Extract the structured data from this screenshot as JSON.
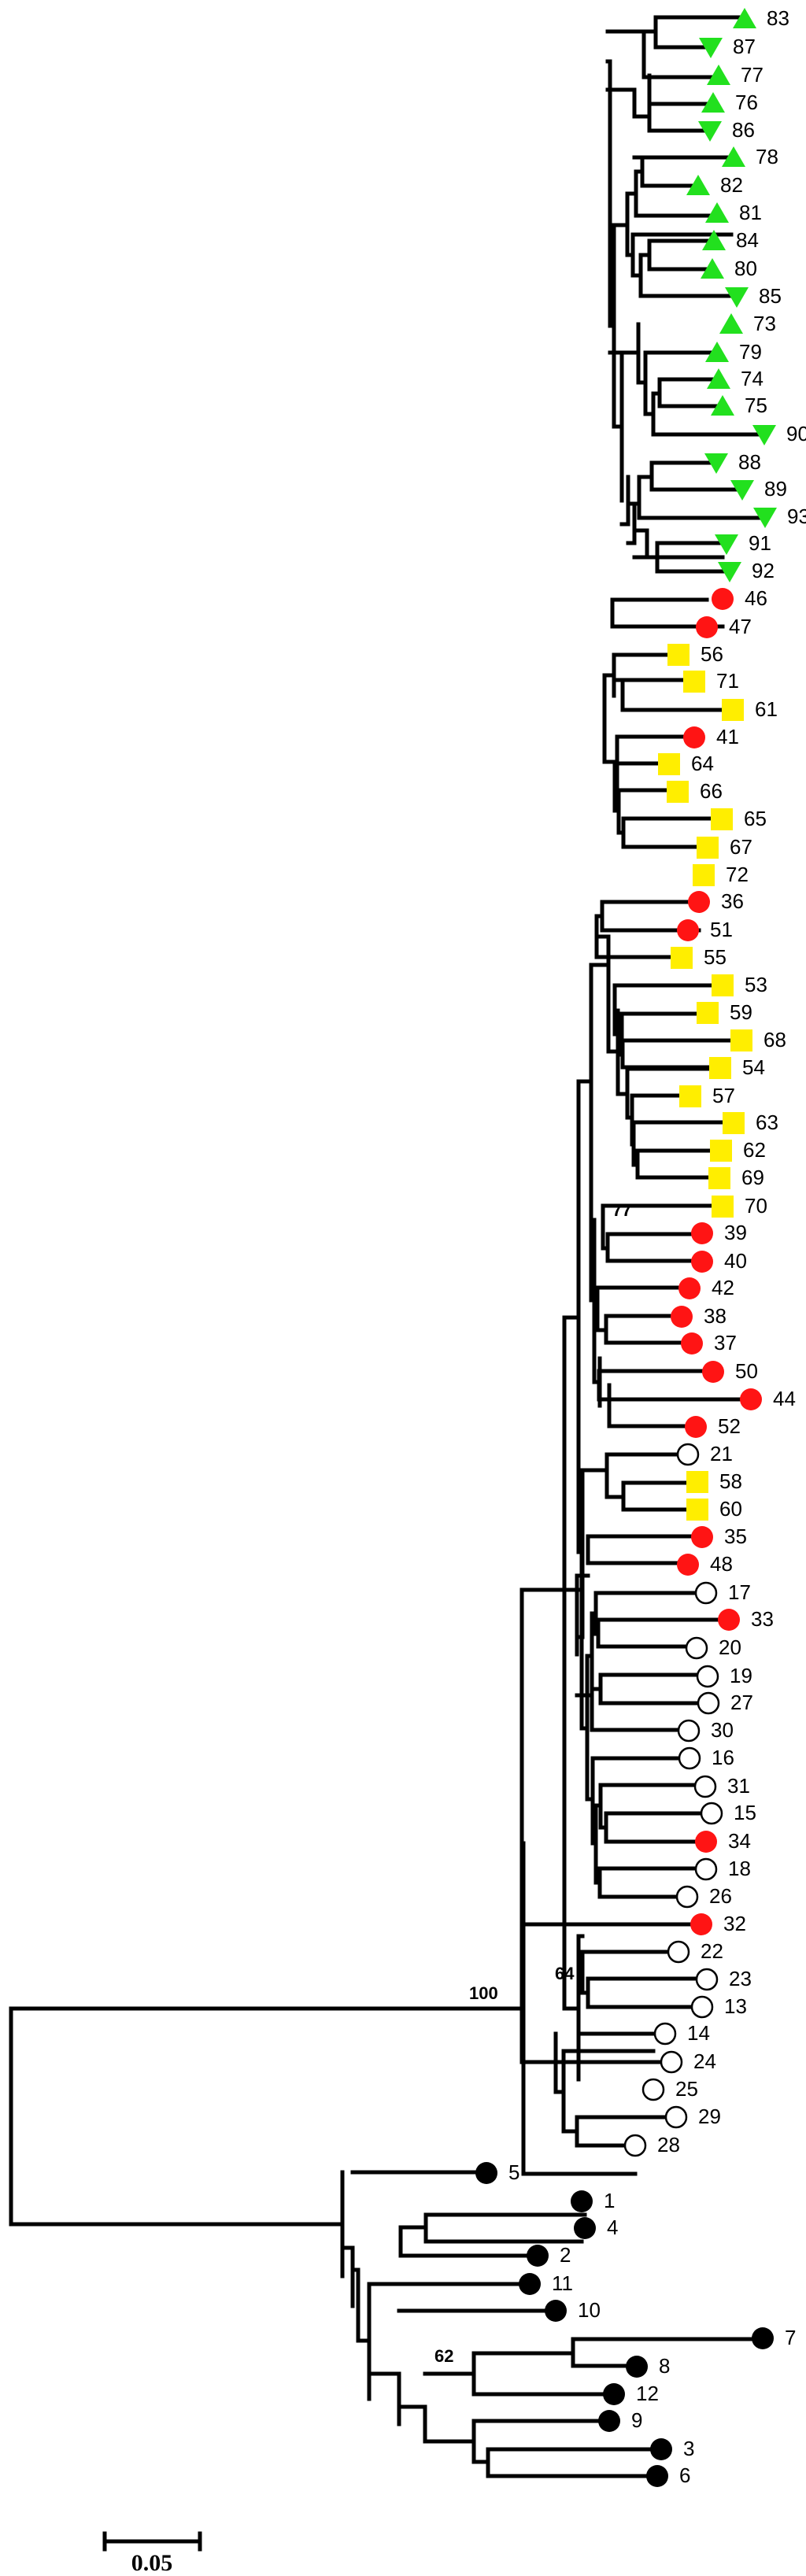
{
  "colors": {
    "triangle_up": "#22e01e",
    "triangle_down": "#22e01e",
    "square": "#ffee00",
    "filled_circle_red": "#ff1414",
    "open_circle": "#ffffff",
    "filled_circle_black": "#000000"
  },
  "tips": [
    {
      "label": "83",
      "marker": "triangle_up"
    },
    {
      "label": "87",
      "marker": "triangle_down"
    },
    {
      "label": "77",
      "marker": "triangle_up"
    },
    {
      "label": "76",
      "marker": "triangle_up"
    },
    {
      "label": "86",
      "marker": "triangle_down"
    },
    {
      "label": "78",
      "marker": "triangle_up"
    },
    {
      "label": "82",
      "marker": "triangle_up"
    },
    {
      "label": "81",
      "marker": "triangle_up"
    },
    {
      "label": "84",
      "marker": "triangle_up"
    },
    {
      "label": "80",
      "marker": "triangle_up"
    },
    {
      "label": "85",
      "marker": "triangle_down"
    },
    {
      "label": "73",
      "marker": "triangle_up"
    },
    {
      "label": "79",
      "marker": "triangle_up"
    },
    {
      "label": "74",
      "marker": "triangle_up"
    },
    {
      "label": "75",
      "marker": "triangle_up"
    },
    {
      "label": "90",
      "marker": "triangle_down"
    },
    {
      "label": "88",
      "marker": "triangle_down"
    },
    {
      "label": "89",
      "marker": "triangle_down"
    },
    {
      "label": "93",
      "marker": "triangle_down"
    },
    {
      "label": "91",
      "marker": "triangle_down"
    },
    {
      "label": "92",
      "marker": "triangle_down"
    },
    {
      "label": "46",
      "marker": "filled_circle_red"
    },
    {
      "label": "47",
      "marker": "filled_circle_red"
    },
    {
      "label": "56",
      "marker": "square"
    },
    {
      "label": "71",
      "marker": "square"
    },
    {
      "label": "61",
      "marker": "square"
    },
    {
      "label": "41",
      "marker": "filled_circle_red"
    },
    {
      "label": "64",
      "marker": "square"
    },
    {
      "label": "66",
      "marker": "square"
    },
    {
      "label": "65",
      "marker": "square"
    },
    {
      "label": "67",
      "marker": "square"
    },
    {
      "label": "72",
      "marker": "square"
    },
    {
      "label": "36",
      "marker": "filled_circle_red"
    },
    {
      "label": "51",
      "marker": "filled_circle_red"
    },
    {
      "label": "55",
      "marker": "square"
    },
    {
      "label": "53",
      "marker": "square"
    },
    {
      "label": "59",
      "marker": "square"
    },
    {
      "label": "68",
      "marker": "square"
    },
    {
      "label": "54",
      "marker": "square"
    },
    {
      "label": "57",
      "marker": "square"
    },
    {
      "label": "63",
      "marker": "square"
    },
    {
      "label": "62",
      "marker": "square"
    },
    {
      "label": "69",
      "marker": "square"
    },
    {
      "label": "70",
      "marker": "square"
    },
    {
      "label": "39",
      "marker": "filled_circle_red"
    },
    {
      "label": "40",
      "marker": "filled_circle_red"
    },
    {
      "label": "42",
      "marker": "filled_circle_red"
    },
    {
      "label": "38",
      "marker": "filled_circle_red"
    },
    {
      "label": "37",
      "marker": "filled_circle_red"
    },
    {
      "label": "50",
      "marker": "filled_circle_red"
    },
    {
      "label": "44",
      "marker": "filled_circle_red"
    },
    {
      "label": "52",
      "marker": "filled_circle_red"
    },
    {
      "label": "21",
      "marker": "open_circle"
    },
    {
      "label": "58",
      "marker": "square"
    },
    {
      "label": "60",
      "marker": "square"
    },
    {
      "label": "35",
      "marker": "filled_circle_red"
    },
    {
      "label": "48",
      "marker": "filled_circle_red"
    },
    {
      "label": "17",
      "marker": "open_circle"
    },
    {
      "label": "33",
      "marker": "filled_circle_red"
    },
    {
      "label": "20",
      "marker": "open_circle"
    },
    {
      "label": "19",
      "marker": "open_circle"
    },
    {
      "label": "27",
      "marker": "open_circle"
    },
    {
      "label": "30",
      "marker": "open_circle"
    },
    {
      "label": "16",
      "marker": "open_circle"
    },
    {
      "label": "31",
      "marker": "open_circle"
    },
    {
      "label": "15",
      "marker": "open_circle"
    },
    {
      "label": "34",
      "marker": "filled_circle_red"
    },
    {
      "label": "18",
      "marker": "open_circle"
    },
    {
      "label": "26",
      "marker": "open_circle"
    },
    {
      "label": "32",
      "marker": "filled_circle_red"
    },
    {
      "label": "22",
      "marker": "open_circle"
    },
    {
      "label": "23",
      "marker": "open_circle"
    },
    {
      "label": "13",
      "marker": "open_circle"
    },
    {
      "label": "14",
      "marker": "open_circle"
    },
    {
      "label": "24",
      "marker": "open_circle"
    },
    {
      "label": "25",
      "marker": "open_circle"
    },
    {
      "label": "29",
      "marker": "open_circle"
    },
    {
      "label": "28",
      "marker": "open_circle"
    },
    {
      "label": "5",
      "marker": "filled_circle_black"
    },
    {
      "label": "1",
      "marker": "filled_circle_black"
    },
    {
      "label": "4",
      "marker": "filled_circle_black"
    },
    {
      "label": "2",
      "marker": "filled_circle_black"
    },
    {
      "label": "11",
      "marker": "filled_circle_black"
    },
    {
      "label": "10",
      "marker": "filled_circle_black"
    },
    {
      "label": "7",
      "marker": "filled_circle_black"
    },
    {
      "label": "8",
      "marker": "filled_circle_black"
    },
    {
      "label": "12",
      "marker": "filled_circle_black"
    },
    {
      "label": "9",
      "marker": "filled_circle_black"
    },
    {
      "label": "3",
      "marker": "filled_circle_black"
    },
    {
      "label": "6",
      "marker": "filled_circle_black"
    }
  ],
  "support_values": [
    {
      "label": "100",
      "above_tip": "28"
    },
    {
      "label": "77",
      "above_tip": "39"
    },
    {
      "label": "64",
      "above_tip": "13"
    },
    {
      "label": "62",
      "above_tip": "7"
    }
  ],
  "scale_bar": {
    "length": 0.05,
    "label": "0.05"
  }
}
